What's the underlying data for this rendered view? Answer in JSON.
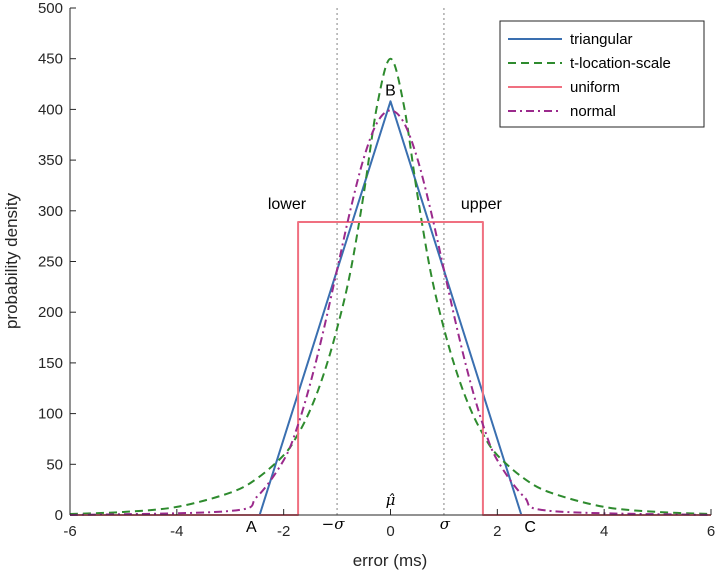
{
  "chart_data": {
    "type": "line",
    "xlabel": "error (ms)",
    "ylabel": "probability density",
    "xlim": [
      -6,
      6
    ],
    "ylim": [
      0,
      500
    ],
    "xticks": [
      -6,
      -4,
      -2,
      0,
      2,
      4,
      6
    ],
    "xtick_labels": [
      "-6",
      "-4",
      "-2",
      "0",
      "2",
      "4",
      "6"
    ],
    "yticks": [
      0,
      50,
      100,
      150,
      200,
      250,
      300,
      350,
      400,
      450,
      500
    ],
    "ytick_labels": [
      "0",
      "50",
      "100",
      "150",
      "200",
      "250",
      "300",
      "350",
      "400",
      "450",
      "500"
    ],
    "grid": false,
    "legend_position": "top-right",
    "series": [
      {
        "name": "triangular",
        "color": "#3a6fb0",
        "dash": "solid",
        "x": [
          -6,
          -2.45,
          0,
          2.45,
          6
        ],
        "y": [
          0,
          0,
          408,
          0,
          0
        ]
      },
      {
        "name": "t-location-scale",
        "color": "#2e8b2e",
        "dash": "dashed",
        "x": [
          -6,
          -5,
          -4,
          -3,
          -2.5,
          -2,
          -1.75,
          -1.5,
          -1.25,
          -1,
          -0.75,
          -0.5,
          -0.25,
          0,
          0.25,
          0.5,
          0.75,
          1,
          1.25,
          1.5,
          1.75,
          2,
          2.5,
          3,
          4,
          5,
          6
        ],
        "y": [
          1,
          3,
          8,
          22,
          36,
          59,
          78,
          104,
          139,
          184,
          240,
          317,
          404,
          450,
          404,
          317,
          240,
          184,
          139,
          104,
          78,
          59,
          36,
          22,
          8,
          3,
          1
        ]
      },
      {
        "name": "uniform",
        "color": "#f07080",
        "dash": "solid",
        "x": [
          -6,
          -1.73,
          -1.73,
          1.73,
          1.73,
          6
        ],
        "y": [
          0,
          0,
          289,
          289,
          0,
          0
        ]
      },
      {
        "name": "normal",
        "color": "#9b2a8c",
        "dash": "dashdot",
        "x": [
          -6,
          -3,
          -2.5,
          -2,
          -1.75,
          -1.5,
          -1.25,
          -1,
          -0.75,
          -0.5,
          -0.25,
          0,
          0.25,
          0.5,
          0.75,
          1,
          1.25,
          1.5,
          1.75,
          2,
          2.5,
          3,
          6
        ],
        "y": [
          0,
          4,
          18,
          54,
          86,
          130,
          183,
          242,
          301,
          352,
          387,
          399,
          387,
          352,
          301,
          242,
          183,
          130,
          86,
          54,
          18,
          4,
          0
        ]
      }
    ],
    "reference_lines": [
      {
        "name": "-sigma",
        "x": -1,
        "style": "dotted",
        "color": "#a6a6a6"
      },
      {
        "name": "sigma",
        "x": 1,
        "style": "dotted",
        "color": "#a6a6a6"
      }
    ],
    "annotations": [
      {
        "name": "point-a",
        "text": "A",
        "x": -2.45,
        "y": 0
      },
      {
        "name": "point-b",
        "text": "B",
        "x": 0,
        "y": 408
      },
      {
        "name": "point-c",
        "text": "C",
        "x": 2.45,
        "y": 0
      },
      {
        "name": "lower",
        "text": "lower",
        "x": -1.73,
        "y": 289
      },
      {
        "name": "upper",
        "text": "upper",
        "x": 1.73,
        "y": 289
      },
      {
        "name": "mu-hat",
        "text": "μ̂",
        "x": 0,
        "y": 0
      },
      {
        "name": "minus-sigma",
        "text": "−σ",
        "x": -1,
        "y": 0
      },
      {
        "name": "sigma",
        "text": "σ",
        "x": 1,
        "y": 0
      }
    ]
  }
}
